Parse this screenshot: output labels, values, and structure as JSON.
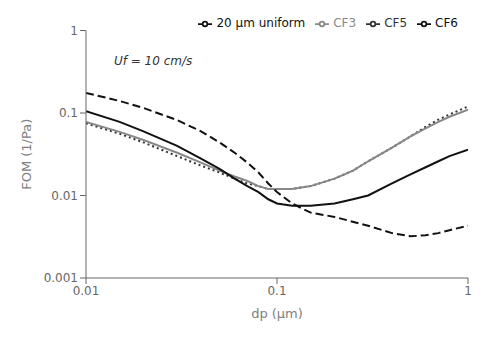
{
  "chart_data": {
    "type": "line",
    "xlabel": "dp (μm)",
    "ylabel": "FOM (1/Pa)",
    "annotations": [
      {
        "text": "Uf = 10 cm/s",
        "x": 0.014,
        "y": 0.38
      }
    ],
    "log": true,
    "legend": "upper right",
    "grid": false,
    "xlim": [
      0.01,
      1.0
    ],
    "ylim": [
      0.001,
      1.0
    ],
    "xticks": [
      0.01,
      0.1,
      1
    ],
    "yticks": [
      0.001,
      0.01,
      0.1,
      1
    ],
    "series": [
      {
        "name": "CF5",
        "color": "#333333",
        "line_style": "dotted",
        "x": [
          0.01,
          0.015,
          0.02,
          0.03,
          0.04,
          0.05,
          0.06,
          0.07,
          0.08,
          0.09,
          0.1,
          0.12,
          0.15,
          0.2,
          0.25,
          0.3,
          0.4,
          0.5,
          0.6,
          0.7,
          0.8,
          1.0
        ],
        "values": [
          0.075,
          0.056,
          0.044,
          0.03,
          0.023,
          0.019,
          0.016,
          0.014,
          0.013,
          0.012,
          0.012,
          0.012,
          0.013,
          0.016,
          0.02,
          0.026,
          0.038,
          0.052,
          0.068,
          0.083,
          0.096,
          0.12
        ]
      },
      {
        "name": "CF3",
        "color": "#888888",
        "line_style": "solid",
        "x": [
          0.01,
          0.015,
          0.02,
          0.03,
          0.04,
          0.05,
          0.06,
          0.07,
          0.08,
          0.09,
          0.1,
          0.12,
          0.15,
          0.2,
          0.25,
          0.3,
          0.4,
          0.5,
          0.6,
          0.7,
          0.8,
          1.0
        ],
        "values": [
          0.078,
          0.059,
          0.047,
          0.033,
          0.025,
          0.02,
          0.017,
          0.015,
          0.013,
          0.012,
          0.012,
          0.012,
          0.013,
          0.016,
          0.02,
          0.026,
          0.038,
          0.052,
          0.065,
          0.078,
          0.09,
          0.11
        ]
      },
      {
        "name": "CF6",
        "color": "#111111",
        "line_style": "solid",
        "x": [
          0.01,
          0.015,
          0.02,
          0.03,
          0.04,
          0.05,
          0.06,
          0.07,
          0.08,
          0.09,
          0.1,
          0.12,
          0.15,
          0.2,
          0.25,
          0.3,
          0.4,
          0.5,
          0.6,
          0.7,
          0.8,
          1.0
        ],
        "values": [
          0.105,
          0.078,
          0.06,
          0.04,
          0.028,
          0.021,
          0.016,
          0.013,
          0.011,
          0.009,
          0.008,
          0.0075,
          0.0075,
          0.008,
          0.009,
          0.01,
          0.014,
          0.018,
          0.022,
          0.026,
          0.03,
          0.036
        ]
      },
      {
        "name": "20 μm uniform",
        "color": "#111111",
        "line_style": "dashed",
        "x": [
          0.01,
          0.015,
          0.02,
          0.03,
          0.04,
          0.05,
          0.06,
          0.07,
          0.08,
          0.09,
          0.1,
          0.12,
          0.15,
          0.2,
          0.3,
          0.4,
          0.5,
          0.6,
          0.7,
          0.8,
          1.0
        ],
        "values": [
          0.175,
          0.14,
          0.115,
          0.082,
          0.06,
          0.044,
          0.033,
          0.025,
          0.019,
          0.014,
          0.011,
          0.008,
          0.0062,
          0.0055,
          0.0043,
          0.0035,
          0.0032,
          0.0033,
          0.0035,
          0.0038,
          0.0043
        ]
      }
    ]
  }
}
